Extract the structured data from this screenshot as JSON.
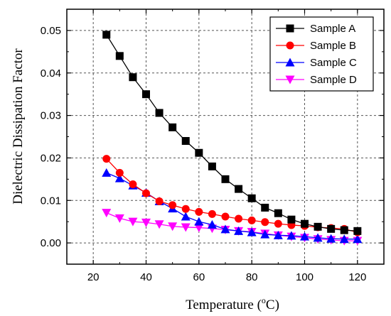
{
  "chart_data": {
    "type": "line",
    "title": "",
    "xlabel": "Temperature (",
    "xlabel_sup": "o",
    "xlabel_suffix": "C)",
    "ylabel": "Dielectric Dissipation Factor",
    "xlim": [
      10,
      130
    ],
    "ylim": [
      -0.005,
      0.055
    ],
    "xticks": [
      20,
      40,
      60,
      80,
      100,
      120
    ],
    "xtick_labels": [
      "20",
      "40",
      "60",
      "80",
      "100",
      "120"
    ],
    "yticks": [
      0.0,
      0.01,
      0.02,
      0.03,
      0.04,
      0.05
    ],
    "ytick_labels": [
      "0.00",
      "0.01",
      "0.02",
      "0.03",
      "0.04",
      "0.05"
    ],
    "grid": true,
    "legend_position": "top-right",
    "x": [
      25,
      30,
      35,
      40,
      45,
      50,
      55,
      60,
      65,
      70,
      75,
      80,
      85,
      90,
      95,
      100,
      105,
      110,
      115,
      120
    ],
    "series": [
      {
        "name": "Sample A",
        "color": "#000000",
        "marker": "square",
        "values": [
          0.049,
          0.044,
          0.039,
          0.035,
          0.0306,
          0.0272,
          0.024,
          0.0212,
          0.018,
          0.015,
          0.0127,
          0.0105,
          0.0083,
          0.007,
          0.0055,
          0.0045,
          0.0038,
          0.0033,
          0.003,
          0.0028
        ]
      },
      {
        "name": "Sample B",
        "color": "#ff0000",
        "marker": "circle",
        "values": [
          0.0198,
          0.0165,
          0.0138,
          0.0117,
          0.0098,
          0.0089,
          0.008,
          0.0073,
          0.0068,
          0.0062,
          0.0057,
          0.0053,
          0.0049,
          0.0045,
          0.0042,
          0.004,
          0.0037,
          0.0035,
          0.0033,
          0.0025
        ]
      },
      {
        "name": "Sample C",
        "color": "#0000ff",
        "marker": "triangle-up",
        "values": [
          0.0165,
          0.0152,
          0.0135,
          0.0118,
          0.0098,
          0.0081,
          0.0062,
          0.005,
          0.0043,
          0.0032,
          0.0028,
          0.0025,
          0.002,
          0.0018,
          0.0017,
          0.0015,
          0.0012,
          0.001,
          0.0009,
          0.0009
        ]
      },
      {
        "name": "Sample D",
        "color": "#ff00ff",
        "marker": "triangle-down",
        "values": [
          0.0071,
          0.0058,
          0.005,
          0.0048,
          0.0044,
          0.0039,
          0.0037,
          0.0036,
          0.0034,
          0.0031,
          0.0028,
          0.0026,
          0.0022,
          0.0018,
          0.0015,
          0.0012,
          0.0009,
          0.0007,
          0.0005,
          0.0005
        ]
      }
    ]
  }
}
